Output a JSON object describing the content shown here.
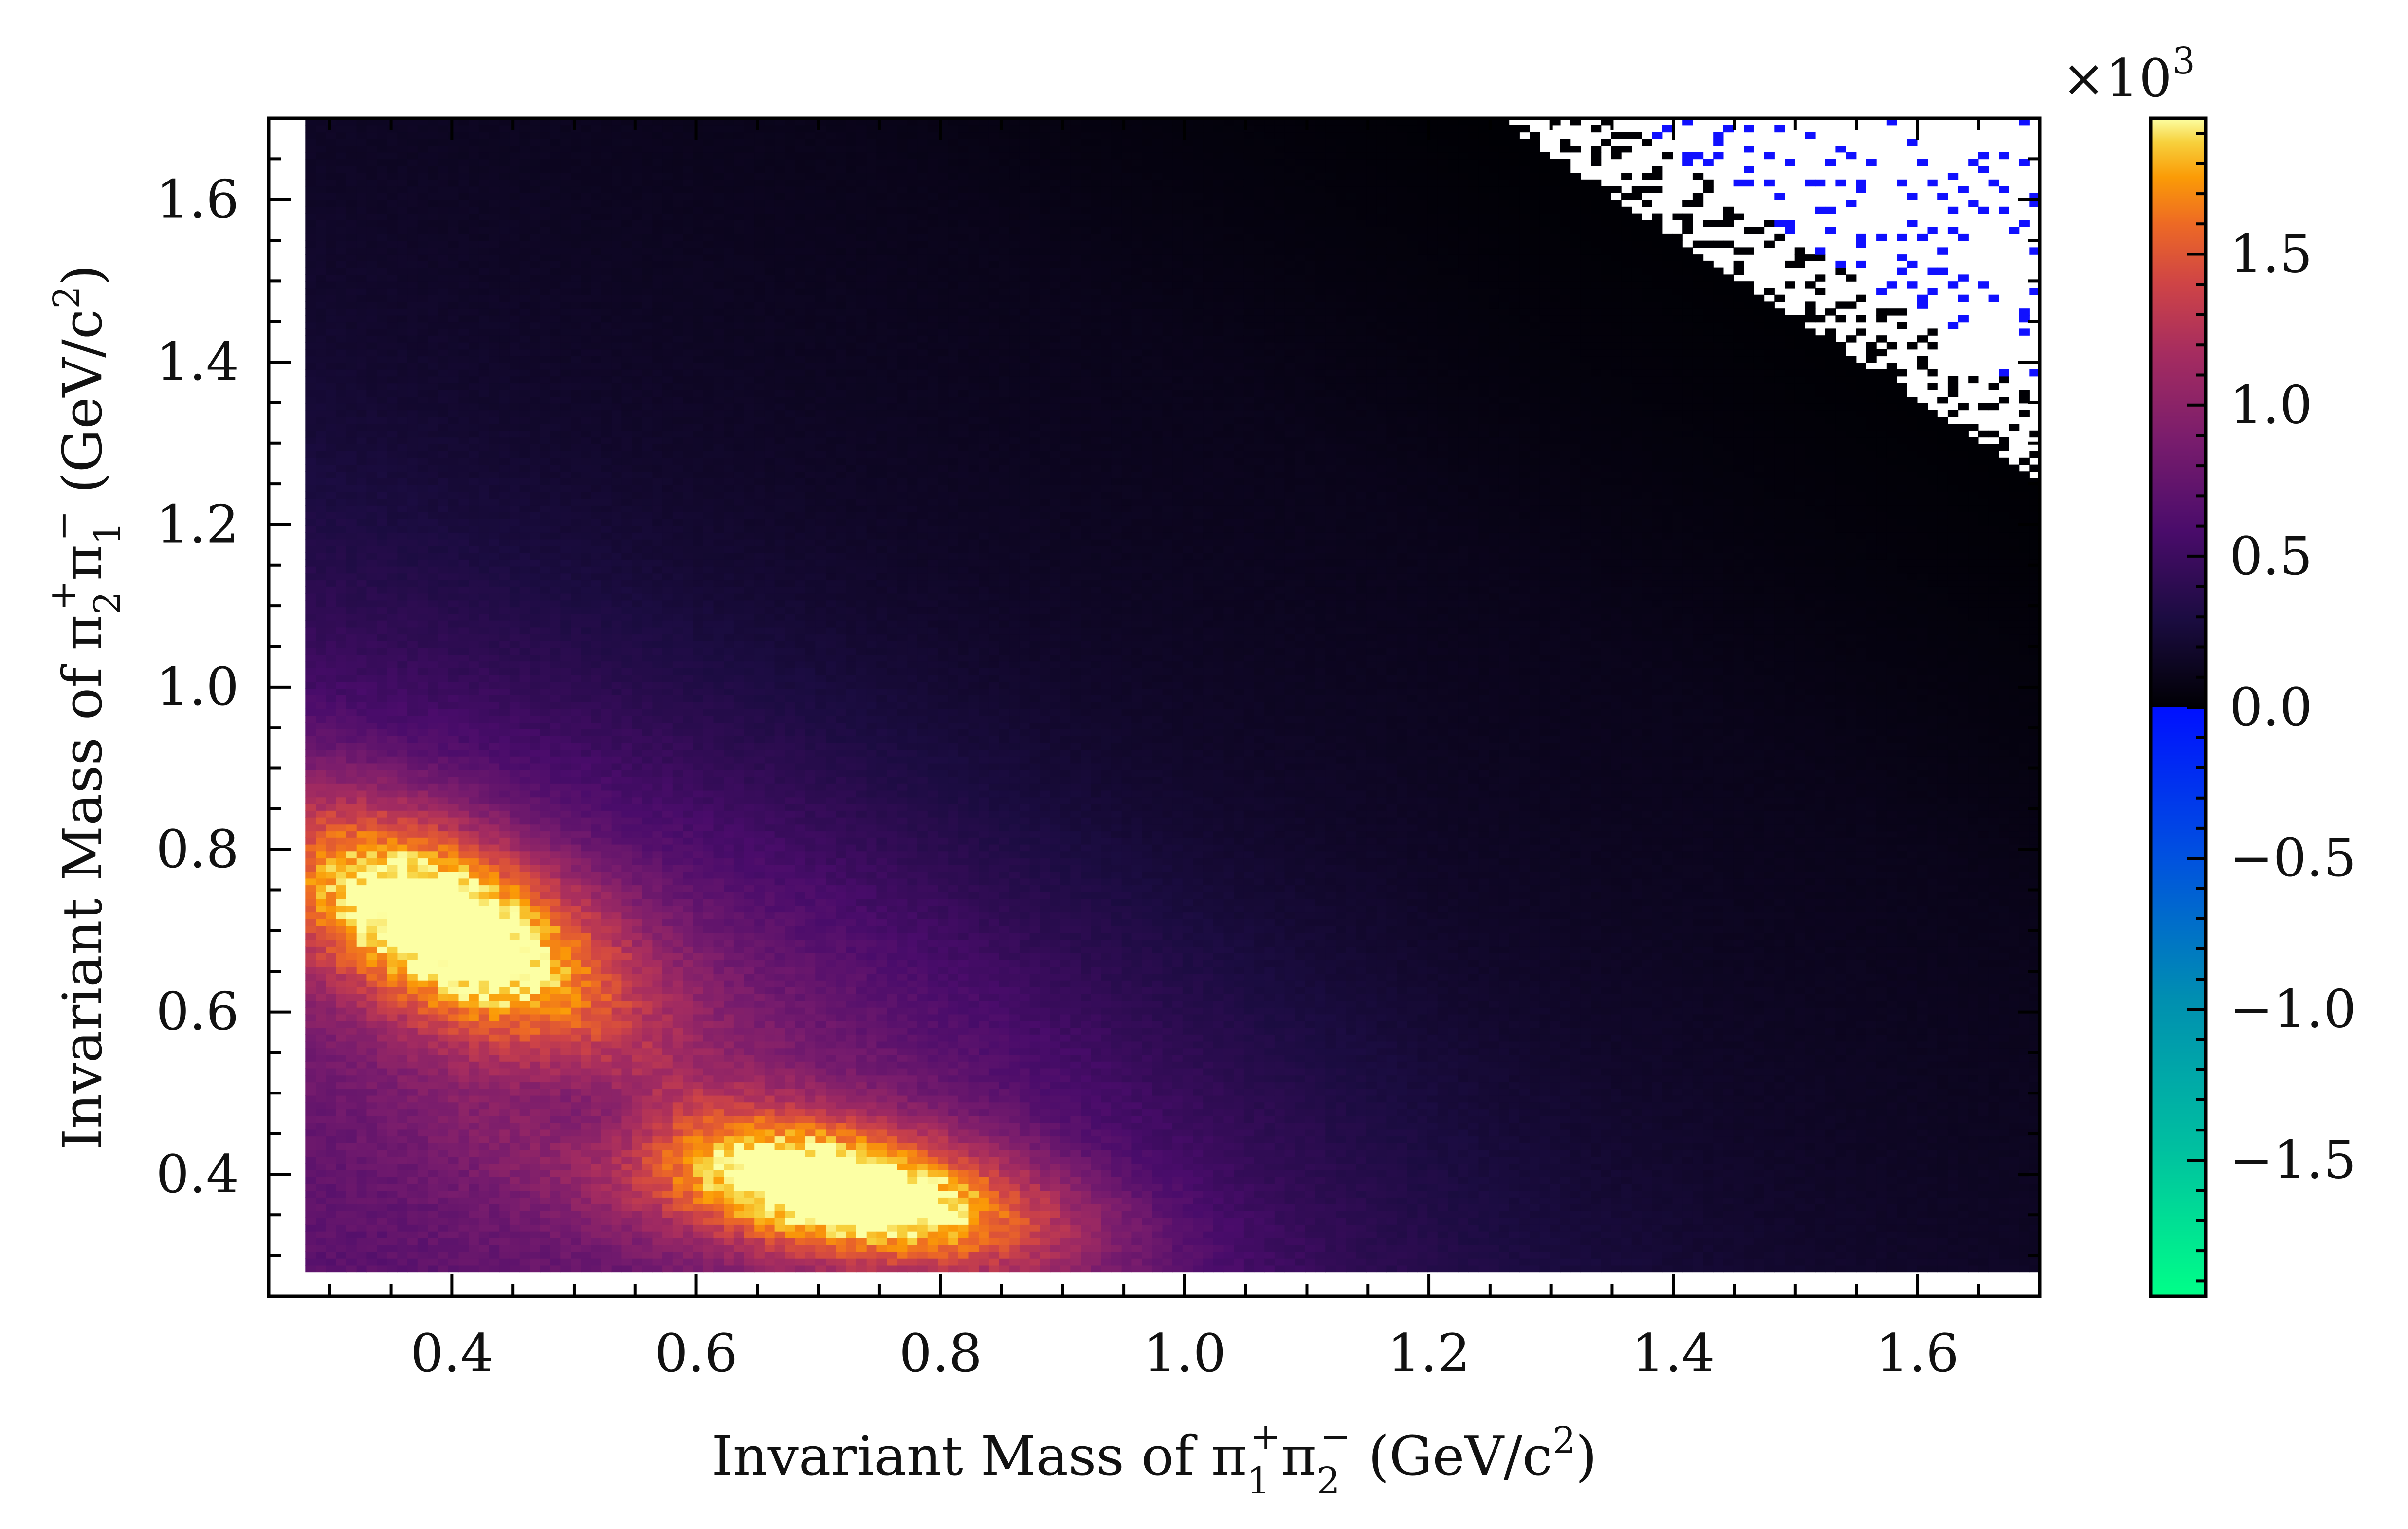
{
  "chart_data": {
    "type": "heatmap",
    "xlabel": "Invariant Mass of π1+π2− (GeV/c2)",
    "ylabel": "Invariant Mass of π2+π1− (GeV/c2)",
    "xlim": [
      0.25,
      1.7
    ],
    "ylim": [
      0.25,
      1.7
    ],
    "x_ticks": [
      "0.4",
      "0.6",
      "0.8",
      "1.0",
      "1.2",
      "1.4",
      "1.6"
    ],
    "y_ticks": [
      "0.4",
      "0.6",
      "0.8",
      "1.0",
      "1.2",
      "1.4",
      "1.6"
    ],
    "grid": false,
    "cells_populated_from": [
      0.28,
      0.28
    ],
    "bins_per_axis": 170,
    "hotspots": [
      {
        "x": 0.39,
        "y": 0.71,
        "value": 1.75
      },
      {
        "x": 0.72,
        "y": 0.38,
        "value": 1.8
      }
    ],
    "empty_region": "upper-right corner (white), with scattered negative (blue) bins",
    "colorbar": {
      "range": [
        -1.95,
        1.95
      ],
      "multiplier": "×10^3",
      "ticks": [
        "1.5",
        "1.0",
        "0.5",
        "0.0",
        "−0.5",
        "−1.0",
        "−1.5"
      ],
      "positive_colormap": "inferno",
      "negative_colormap": "blue-to-green",
      "colors": {
        "zero": "#000004",
        "low": "#420a68",
        "mid": "#932667",
        "high": "#dd513a",
        "peak": "#fca50a",
        "max": "#fcffa4",
        "negative_start": "#0022ff",
        "negative_mid": "#0088b0",
        "negative_end": "#00ff88"
      }
    }
  },
  "labels": {
    "x_prefix": "Invariant Mass of π",
    "x_sub1": "1",
    "x_sup1": "+",
    "x_mid": "π",
    "x_sub2": "2",
    "x_sup2": "−",
    "x_suffix": " (GeV/c",
    "x_sq": "2",
    "x_close": ")",
    "y_prefix": "Invariant Mass of π",
    "y_sub1": "2",
    "y_sup1": "+",
    "y_mid": "π",
    "y_sub2": "1",
    "y_sup2": "−",
    "y_suffix": " (GeV/c",
    "y_sq": "2",
    "y_close": ")",
    "multiplier_base": "×10",
    "multiplier_exp": "3"
  }
}
